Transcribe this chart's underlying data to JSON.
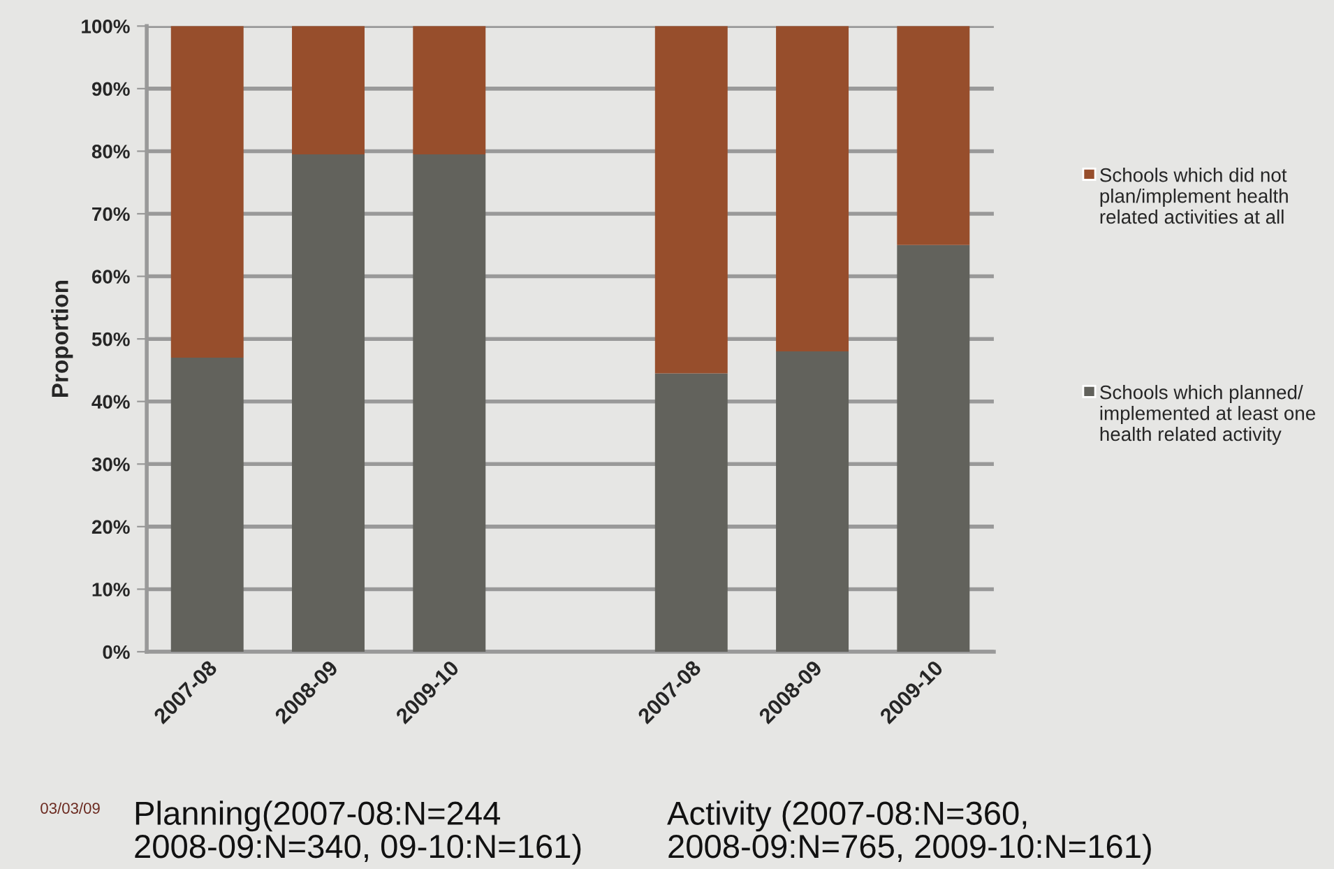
{
  "chart_data": {
    "type": "bar",
    "stacked": true,
    "ylabel": "Proportion",
    "categories": [
      "2007-08",
      "2008-09",
      "2009-10",
      null,
      "2007-08",
      "2008-09",
      "2009-10"
    ],
    "series": [
      {
        "name": "Schools which planned/ implemented at least one health related activity",
        "color": "#62625c",
        "values": [
          47,
          79.5,
          79.5,
          null,
          44.5,
          48,
          65
        ]
      },
      {
        "name": "Schools which did not plan/implement health related activities at all",
        "color": "#974e2c",
        "values": [
          53,
          20.5,
          20.5,
          null,
          55.5,
          52,
          35
        ]
      }
    ],
    "ylim": [
      0,
      100
    ],
    "yticks": [
      {
        "value": 0,
        "label": "0%"
      },
      {
        "value": 10,
        "label": "10%"
      },
      {
        "value": 20,
        "label": "20%"
      },
      {
        "value": 30,
        "label": "30%"
      },
      {
        "value": 40,
        "label": "40%"
      },
      {
        "value": 50,
        "label": "50%"
      },
      {
        "value": 60,
        "label": "60%"
      },
      {
        "value": 70,
        "label": "70%"
      },
      {
        "value": 80,
        "label": "80%"
      },
      {
        "value": 90,
        "label": "90%"
      },
      {
        "value": 100,
        "label": "100%"
      }
    ],
    "grid": "y",
    "legend": "right",
    "annotations": [
      "Planning(2007-08:N=244\n2008-09:N=340, 09-10:N=161)",
      "Activity (2007-08:N=360,\n2008-09:N=765, 2009-10:N=161)",
      "03/03/09"
    ]
  }
}
